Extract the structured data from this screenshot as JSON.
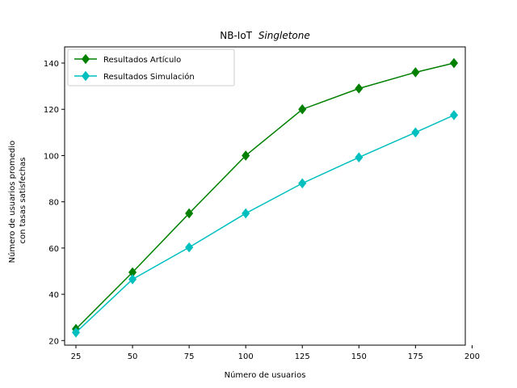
{
  "chart_data": {
    "type": "line",
    "title": "NB-IoT",
    "title_italic": "Singletone",
    "xlabel": "Número de usuarios",
    "ylabel_line1": "Número de usuarios promedio",
    "ylabel_line2": "con tasas satisfechas",
    "xlim": [
      20,
      197
    ],
    "ylim": [
      18,
      147
    ],
    "xticks": [
      25,
      50,
      75,
      100,
      125,
      150,
      175,
      200
    ],
    "yticks": [
      20,
      40,
      60,
      80,
      100,
      120,
      140
    ],
    "legend_placement": "upper-left",
    "grid": false,
    "series": [
      {
        "name": "Resultados Artículo",
        "color": "#008000",
        "marker": "diamond",
        "x": [
          25,
          50,
          75,
          100,
          125,
          150,
          175,
          192
        ],
        "y": [
          25,
          49.5,
          75,
          100,
          120,
          129,
          136,
          140
        ]
      },
      {
        "name": "Resultados Simulación",
        "color": "#00bfbf",
        "marker": "diamond",
        "x": [
          25,
          50,
          75,
          100,
          125,
          150,
          175,
          192
        ],
        "y": [
          23.5,
          46.5,
          60.3,
          75,
          88,
          99.2,
          110,
          117.5
        ]
      }
    ]
  }
}
